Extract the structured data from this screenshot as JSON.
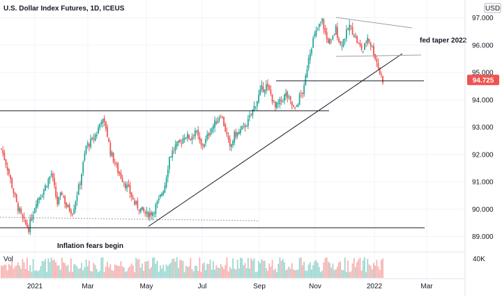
{
  "chart_data": {
    "type": "candlestick",
    "title": "U.S. Dollar Index Futures, 1D, ICEUS",
    "currency": "USD",
    "x_ticks": [
      "2021",
      "Mar",
      "May",
      "Jul",
      "Sep",
      "Nov",
      "2022",
      "Mar"
    ],
    "y_ticks": [
      "97.000",
      "96.000",
      "95.000",
      "94.000",
      "93.000",
      "92.000",
      "91.000",
      "90.000",
      "89.000"
    ],
    "ylim": [
      88.8,
      97.3
    ],
    "last_price": "94.725",
    "volume_label": "Vol",
    "volume_tick": "40K",
    "colors": {
      "up": "#26a69a",
      "down": "#ef5350",
      "price_label_bg": "#ef5350",
      "line": "#131722"
    },
    "anchors": [
      [
        0,
        92.2
      ],
      [
        4,
        91.5
      ],
      [
        10,
        90.2
      ],
      [
        14,
        89.6
      ],
      [
        18,
        89.3
      ],
      [
        23,
        90.3
      ],
      [
        27,
        90.6
      ],
      [
        33,
        91.3
      ],
      [
        37,
        90.2
      ],
      [
        40,
        90.6
      ],
      [
        43,
        90.1
      ],
      [
        47,
        89.9
      ],
      [
        52,
        91.0
      ],
      [
        56,
        92.3
      ],
      [
        60,
        92.5
      ],
      [
        63,
        92.8
      ],
      [
        66,
        93.3
      ],
      [
        69,
        93.0
      ],
      [
        72,
        92.1
      ],
      [
        77,
        91.4
      ],
      [
        81,
        91.0
      ],
      [
        85,
        90.6
      ],
      [
        88,
        90.2
      ],
      [
        92,
        90.0
      ],
      [
        96,
        89.8
      ],
      [
        100,
        89.9
      ],
      [
        104,
        90.3
      ],
      [
        108,
        90.9
      ],
      [
        111,
        91.9
      ],
      [
        115,
        92.3
      ],
      [
        118,
        92.4
      ],
      [
        121,
        92.7
      ],
      [
        125,
        92.6
      ],
      [
        128,
        92.9
      ],
      [
        132,
        92.3
      ],
      [
        135,
        92.5
      ],
      [
        138,
        92.9
      ],
      [
        142,
        93.2
      ],
      [
        145,
        93.5
      ],
      [
        148,
        92.9
      ],
      [
        151,
        92.2
      ],
      [
        154,
        92.7
      ],
      [
        157,
        92.8
      ],
      [
        160,
        93.0
      ],
      [
        163,
        93.2
      ],
      [
        166,
        93.6
      ],
      [
        169,
        94.0
      ],
      [
        172,
        94.4
      ],
      [
        175,
        94.5
      ],
      [
        178,
        94.2
      ],
      [
        181,
        93.7
      ],
      [
        184,
        93.9
      ],
      [
        188,
        94.2
      ],
      [
        191,
        93.9
      ],
      [
        194,
        93.6
      ],
      [
        197,
        94.1
      ],
      [
        200,
        94.4
      ],
      [
        203,
        95.6
      ],
      [
        206,
        96.2
      ],
      [
        209,
        96.6
      ],
      [
        212,
        96.9
      ],
      [
        215,
        96.2
      ],
      [
        218,
        96.1
      ],
      [
        221,
        96.6
      ],
      [
        224,
        96.0
      ],
      [
        227,
        96.3
      ],
      [
        230,
        96.7
      ],
      [
        233,
        96.4
      ],
      [
        236,
        96.0
      ],
      [
        239,
        95.8
      ],
      [
        242,
        96.3
      ],
      [
        245,
        95.9
      ],
      [
        248,
        95.4
      ],
      [
        250,
        95.0
      ],
      [
        252,
        94.72
      ]
    ],
    "volume_ticks_max": "40K",
    "annotations": [
      "Inflation fears begin",
      "fed taper 2022"
    ]
  }
}
